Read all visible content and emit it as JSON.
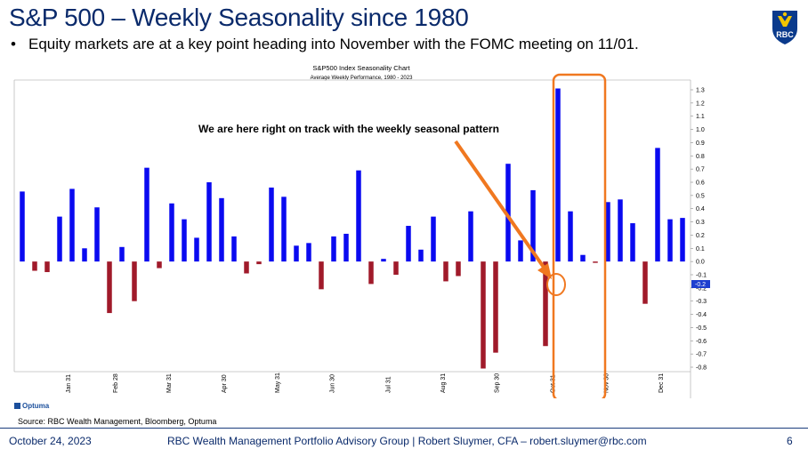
{
  "slide": {
    "title": "S&P 500 – Weekly Seasonality since 1980",
    "bullet": "Equity markets are at a key point heading into November with the FOMC meeting on 11/01.",
    "logo_text": "RBC",
    "source": "Source: RBC Wealth Management, Bloomberg, Optuma",
    "optuma_label": "Optuma",
    "footer": {
      "date": "October 24, 2023",
      "center": "RBC Wealth Management Portfolio Advisory Group  |  Robert Sluymer, CFA – robert.sluymer@rbc.com",
      "page": "6"
    }
  },
  "colors": {
    "title_blue": "#0a2a6b",
    "positive": "#0a0af0",
    "negative": "#a01a2a",
    "highlight": "#f07820",
    "rbc_blue": "#0a3a8c",
    "rbc_yellow": "#f2c500"
  },
  "chart_data": {
    "type": "bar",
    "title": "S&P500 Index Seasonality Chart",
    "subtitle": "Average Weekly Performance, 1980 - 2023",
    "annotation": "We are here right on track with the weekly seasonal pattern",
    "current_value_label": "-0.2",
    "y_axis_side": "right",
    "ylim": [
      -0.85,
      1.35
    ],
    "y_ticks": [
      1.3,
      1.2,
      1.1,
      1.0,
      0.9,
      0.8,
      0.7,
      0.6,
      0.5,
      0.4,
      0.3,
      0.2,
      0.1,
      0.0,
      -0.1,
      -0.2,
      -0.3,
      -0.4,
      -0.5,
      -0.6,
      -0.7,
      -0.8
    ],
    "y_tick_labels": [
      "1.3",
      "1.2",
      "1.1",
      "1.0",
      "0.9",
      "0.8",
      "0.7",
      "0.6",
      "0.5",
      "0.4",
      "0.3",
      "0.2",
      "0.1",
      "0.0",
      "-0.1",
      "-0.2",
      "-0.3",
      "-0.4",
      "-0.5",
      "-0.6",
      "-0.7",
      "-0.8"
    ],
    "x_tick_labels": [
      {
        "label": "Jan 31",
        "week": 4.7
      },
      {
        "label": "Feb 28",
        "week": 8.5
      },
      {
        "label": "Mar 31",
        "week": 12.8
      },
      {
        "label": "Apr 30",
        "week": 17.2
      },
      {
        "label": "May 31",
        "week": 21.5
      },
      {
        "label": "Jun 30",
        "week": 25.9
      },
      {
        "label": "Jul 31",
        "week": 30.4
      },
      {
        "label": "Aug 31",
        "week": 34.8
      },
      {
        "label": "Sep 30",
        "week": 39.1
      },
      {
        "label": "Oct 31",
        "week": 43.6
      },
      {
        "label": "Nov 30",
        "week": 47.9
      },
      {
        "label": "Dec 31",
        "week": 52.3
      }
    ],
    "values": [
      0.53,
      -0.07,
      -0.08,
      0.34,
      0.55,
      0.1,
      0.41,
      -0.39,
      0.11,
      -0.3,
      0.71,
      -0.05,
      0.44,
      0.32,
      0.18,
      0.6,
      0.48,
      0.19,
      -0.09,
      -0.02,
      0.56,
      0.49,
      0.12,
      0.14,
      -0.21,
      0.19,
      0.21,
      0.69,
      -0.17,
      0.02,
      -0.1,
      0.27,
      0.09,
      0.34,
      -0.15,
      -0.11,
      0.38,
      -0.81,
      -0.69,
      0.74,
      0.16,
      0.54,
      -0.64,
      1.31,
      0.38,
      0.05,
      -0.01,
      0.45,
      0.47,
      0.29,
      -0.32,
      0.86,
      0.32,
      0.33
    ],
    "grid": false,
    "legend": "none"
  }
}
